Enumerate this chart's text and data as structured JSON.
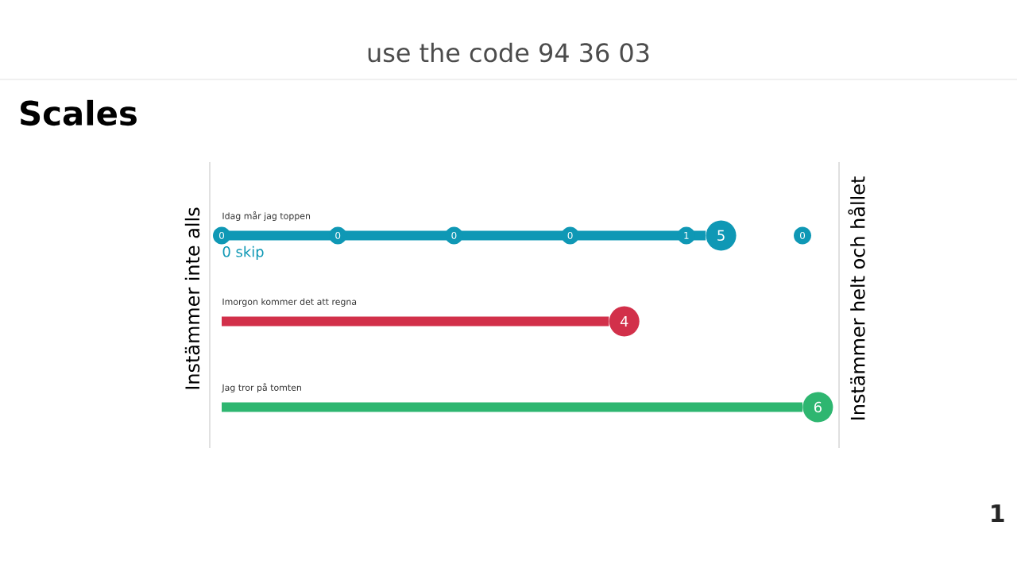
{
  "chart_data": {
    "type": "bar",
    "orientation": "horizontal",
    "title": "Scales",
    "ylabel": "Instämmer inte alls",
    "y2label": "Instämmer helt och hållet",
    "categories": [
      "Idag mår jag toppen",
      "Imorgon kommer det att regna",
      "Jag tror på tomten"
    ],
    "values": [
      5,
      4,
      6
    ],
    "colors": [
      "#0f98b5",
      "#d2304a",
      "#2eb670"
    ],
    "data_labels": true,
    "annotations": [
      "use the code 94 36 03",
      "0 skip",
      "1",
      "0",
      "0",
      "0",
      "0",
      "1",
      "0"
    ]
  }
}
